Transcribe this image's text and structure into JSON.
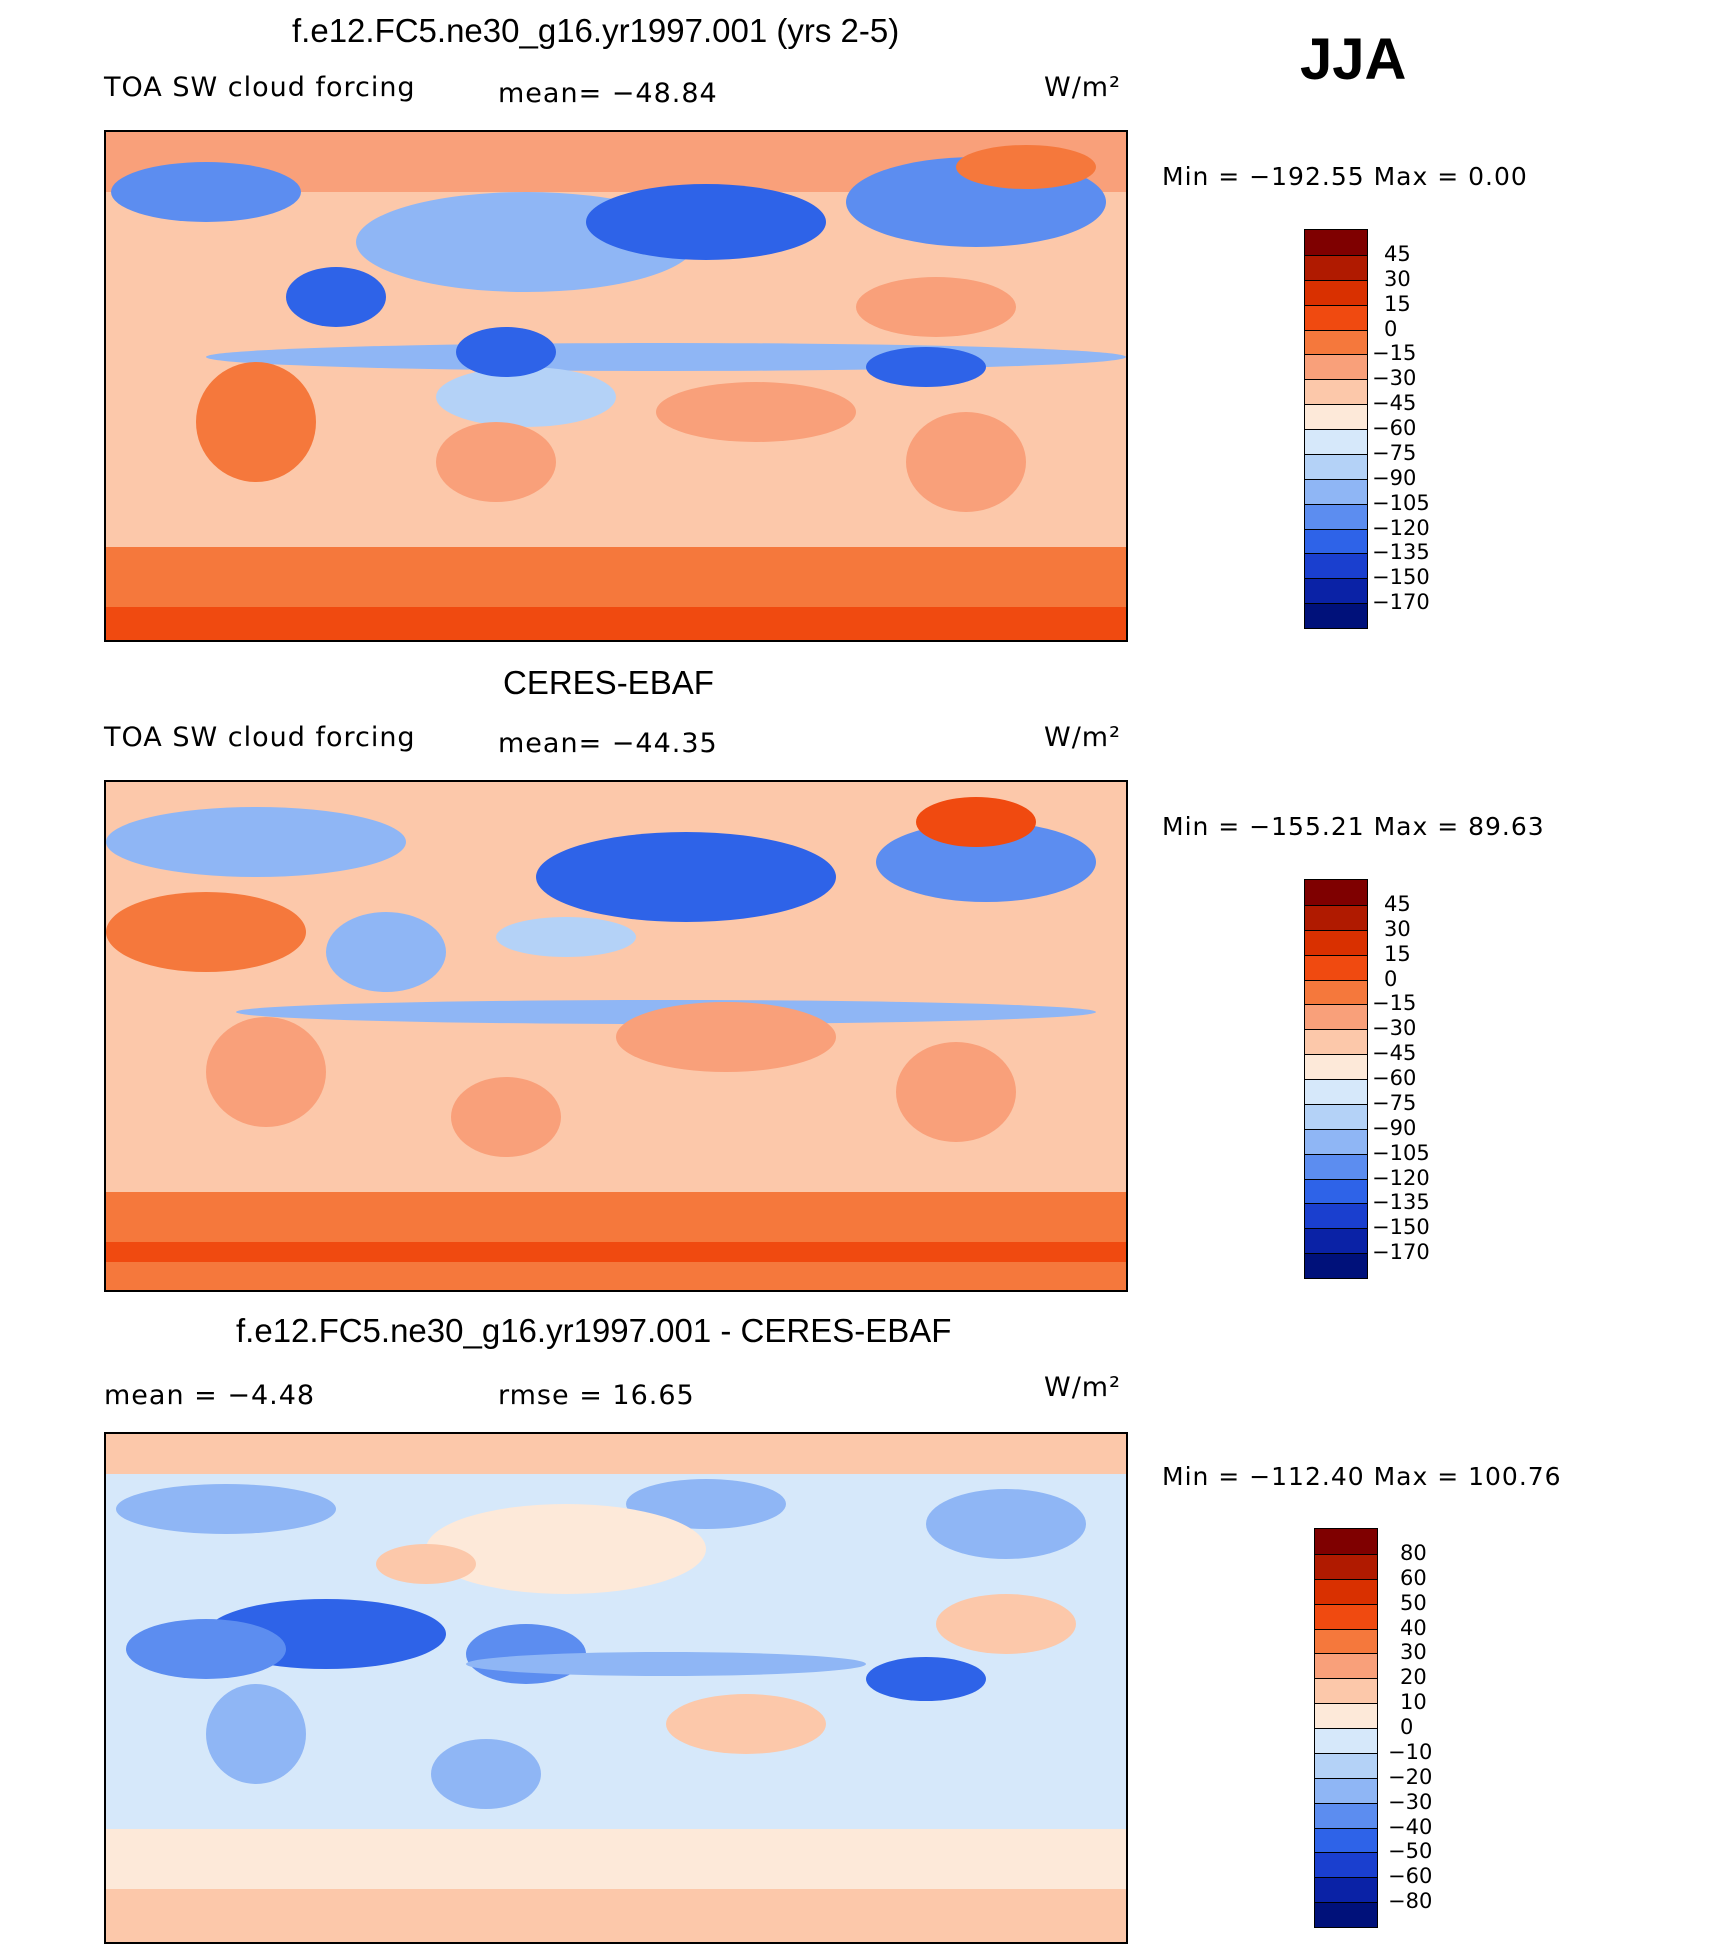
{
  "season": "JJA",
  "chart_data": [
    {
      "type": "heatmap",
      "title": "f.e12.FC5.ne30_g16.yr1997.001 (yrs 2-5)",
      "left_label": "TOA SW cloud forcing",
      "center_label": "mean=  −48.84",
      "units": "W/m²",
      "stats": "Min  =  −192.55  Max  =     0.00",
      "mean": -48.84,
      "min": -192.55,
      "max": 0.0,
      "colorbar": {
        "labels": [
          "45",
          "30",
          "15",
          "0",
          "−15",
          "−30",
          "−45",
          "−60",
          "−75",
          "−90",
          "−105",
          "−120",
          "−135",
          "−150",
          "−170"
        ],
        "colors": [
          "#7f0000",
          "#b01a00",
          "#d93000",
          "#f04a10",
          "#f5783c",
          "#f9a07a",
          "#fcc8aa",
          "#fde9d9",
          "#d6e8fa",
          "#b4d2f7",
          "#8fb6f5",
          "#5c8df0",
          "#2e63e8",
          "#1a3fcf",
          "#0a22a6",
          "#00117a"
        ]
      }
    },
    {
      "type": "heatmap",
      "title": "CERES-EBAF",
      "left_label": "TOA SW cloud forcing",
      "center_label": "mean=  −44.35",
      "units": "W/m²",
      "stats": "Min  =  −155.21  Max  =   89.63",
      "mean": -44.35,
      "min": -155.21,
      "max": 89.63,
      "colorbar": {
        "labels": [
          "45",
          "30",
          "15",
          "0",
          "−15",
          "−30",
          "−45",
          "−60",
          "−75",
          "−90",
          "−105",
          "−120",
          "−135",
          "−150",
          "−170"
        ],
        "colors": [
          "#7f0000",
          "#b01a00",
          "#d93000",
          "#f04a10",
          "#f5783c",
          "#f9a07a",
          "#fcc8aa",
          "#fde9d9",
          "#d6e8fa",
          "#b4d2f7",
          "#8fb6f5",
          "#5c8df0",
          "#2e63e8",
          "#1a3fcf",
          "#0a22a6",
          "#00117a"
        ]
      }
    },
    {
      "type": "heatmap",
      "title": "f.e12.FC5.ne30_g16.yr1997.001 - CERES-EBAF",
      "left_label": "mean  =    −4.48",
      "center_label": "rmse  =    16.65",
      "units": "W/m²",
      "stats": "Min  =  −112.40  Max  =  100.76",
      "mean": -4.48,
      "rmse": 16.65,
      "min": -112.4,
      "max": 100.76,
      "colorbar": {
        "labels": [
          "80",
          "60",
          "50",
          "40",
          "30",
          "20",
          "10",
          "0",
          "−10",
          "−20",
          "−30",
          "−40",
          "−50",
          "−60",
          "−80"
        ],
        "colors": [
          "#7f0000",
          "#b01a00",
          "#d93000",
          "#f04a10",
          "#f5783c",
          "#f9a07a",
          "#fcc8aa",
          "#fde9d9",
          "#d6e8fa",
          "#b4d2f7",
          "#8fb6f5",
          "#5c8df0",
          "#2e63e8",
          "#1a3fcf",
          "#0a22a6",
          "#00117a"
        ]
      }
    }
  ]
}
